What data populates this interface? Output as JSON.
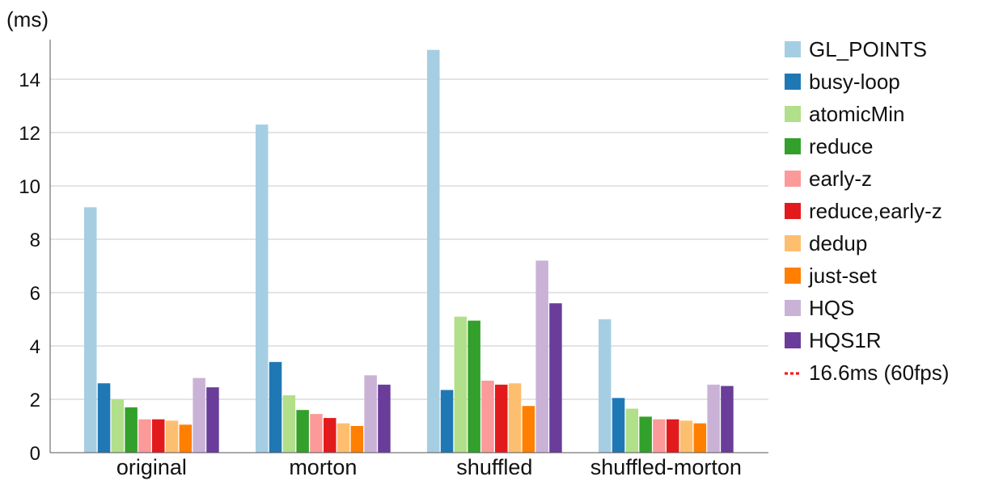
{
  "chart_data": {
    "type": "bar",
    "ylabel": "(ms)",
    "ylim": [
      0,
      15
    ],
    "yticks": [
      0,
      2,
      4,
      6,
      8,
      10,
      12,
      14
    ],
    "grid": true,
    "legend_position": "right",
    "categories": [
      "original",
      "morton",
      "shuffled",
      "shuffled-morton"
    ],
    "series": [
      {
        "name": "GL_POINTS",
        "color": "#a6cee3",
        "values": [
          9.2,
          12.3,
          15.1,
          5.0
        ]
      },
      {
        "name": "busy-loop",
        "color": "#1f78b4",
        "values": [
          2.6,
          3.4,
          2.35,
          2.05
        ]
      },
      {
        "name": "atomicMin",
        "color": "#b2df8a",
        "values": [
          2.0,
          2.15,
          5.1,
          1.65
        ]
      },
      {
        "name": "reduce",
        "color": "#33a02c",
        "values": [
          1.7,
          1.6,
          4.95,
          1.35
        ]
      },
      {
        "name": "early-z",
        "color": "#fb9a99",
        "values": [
          1.25,
          1.45,
          2.7,
          1.25
        ]
      },
      {
        "name": "reduce,early-z",
        "color": "#e31a1c",
        "values": [
          1.25,
          1.3,
          2.55,
          1.25
        ]
      },
      {
        "name": "dedup",
        "color": "#fdbf6f",
        "values": [
          1.2,
          1.1,
          2.6,
          1.2
        ]
      },
      {
        "name": "just-set",
        "color": "#ff7f00",
        "values": [
          1.05,
          1.0,
          1.75,
          1.1
        ]
      },
      {
        "name": "HQS",
        "color": "#cab2d6",
        "values": [
          2.8,
          2.9,
          7.2,
          2.55
        ]
      },
      {
        "name": "HQS1R",
        "color": "#6a3d9a",
        "values": [
          2.45,
          2.55,
          5.6,
          2.5
        ]
      }
    ],
    "reference_line": {
      "name": "16.6ms (60fps)",
      "value": 16.6,
      "color": "#ff0000"
    }
  }
}
